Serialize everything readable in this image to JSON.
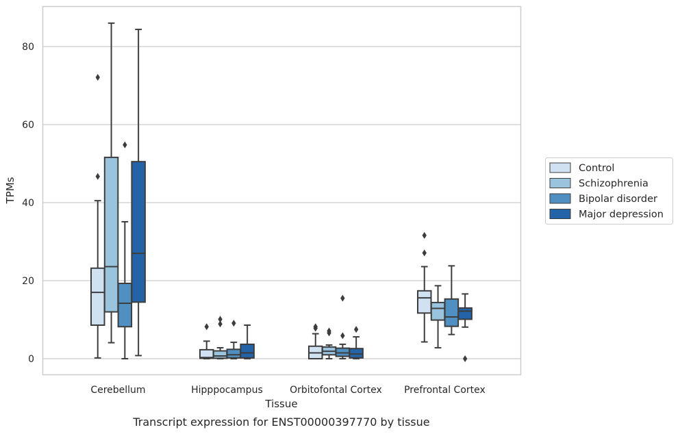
{
  "chart_data": {
    "type": "box",
    "caption": "Transcript expression for ENST00000397770 by tissue",
    "xlabel": "Tissue",
    "ylabel": "TPMs",
    "ylim": [
      -4.2,
      90.5
    ],
    "yticks": [
      0,
      20,
      40,
      60,
      80
    ],
    "grid": "horizontal",
    "legend_position": "right",
    "categories": [
      "Cerebellum",
      "Hipppocampus",
      "Orbitofontal Cortex",
      "Prefrontal Cortex"
    ],
    "series": [
      {
        "name": "Control",
        "color": "#d0e1f2",
        "boxes": [
          {
            "whislo": 0.2,
            "q1": 8.6,
            "med": 17.0,
            "q3": 23.2,
            "whishi": 40.5,
            "fliers": [
              46.7,
              72.1
            ]
          },
          {
            "whislo": 0.0,
            "q1": 0.1,
            "med": 0.3,
            "q3": 2.3,
            "whishi": 4.5,
            "fliers": [
              8.2
            ]
          },
          {
            "whislo": 0.0,
            "q1": 0.0,
            "med": 1.5,
            "q3": 3.2,
            "whishi": 6.4,
            "fliers": [
              7.8,
              8.2
            ]
          },
          {
            "whislo": 4.3,
            "q1": 11.7,
            "med": 15.6,
            "q3": 17.4,
            "whishi": 23.6,
            "fliers": [
              27.1,
              31.6
            ]
          }
        ]
      },
      {
        "name": "Schizophrenia",
        "color": "#9ac3de",
        "boxes": [
          {
            "whislo": 4.1,
            "q1": 12.0,
            "med": 23.6,
            "q3": 51.6,
            "whishi": 86.0,
            "fliers": []
          },
          {
            "whislo": 0.0,
            "q1": 0.1,
            "med": 0.7,
            "q3": 2.0,
            "whishi": 2.8,
            "fliers": [
              8.9,
              10.1
            ]
          },
          {
            "whislo": 0.0,
            "q1": 1.0,
            "med": 1.9,
            "q3": 3.0,
            "whishi": 3.5,
            "fliers": [
              6.6,
              7.1
            ]
          },
          {
            "whislo": 2.8,
            "q1": 9.9,
            "med": 12.9,
            "q3": 14.4,
            "whishi": 18.7,
            "fliers": []
          }
        ]
      },
      {
        "name": "Bipolar disorder",
        "color": "#4f8fc1",
        "boxes": [
          {
            "whislo": 0.0,
            "q1": 8.2,
            "med": 14.2,
            "q3": 19.3,
            "whishi": 35.1,
            "fliers": [
              54.8
            ]
          },
          {
            "whislo": 0.0,
            "q1": 0.2,
            "med": 1.0,
            "q3": 2.4,
            "whishi": 4.2,
            "fliers": [
              9.1
            ]
          },
          {
            "whislo": 0.0,
            "q1": 0.6,
            "med": 1.5,
            "q3": 2.7,
            "whishi": 3.7,
            "fliers": [
              5.9,
              15.5
            ]
          },
          {
            "whislo": 6.2,
            "q1": 8.3,
            "med": 10.7,
            "q3": 15.3,
            "whishi": 23.8,
            "fliers": []
          }
        ]
      },
      {
        "name": "Major depression",
        "color": "#2463a7",
        "boxes": [
          {
            "whislo": 0.8,
            "q1": 14.5,
            "med": 27.0,
            "q3": 50.5,
            "whishi": 84.4,
            "fliers": []
          },
          {
            "whislo": 0.0,
            "q1": 0.2,
            "med": 1.5,
            "q3": 3.7,
            "whishi": 8.6,
            "fliers": []
          },
          {
            "whislo": 0.0,
            "q1": 0.2,
            "med": 1.2,
            "q3": 2.6,
            "whishi": 5.6,
            "fliers": [
              7.5
            ]
          },
          {
            "whislo": 8.1,
            "q1": 10.1,
            "med": 12.2,
            "q3": 13.0,
            "whishi": 16.6,
            "fliers": [
              0.0
            ]
          }
        ]
      }
    ]
  }
}
